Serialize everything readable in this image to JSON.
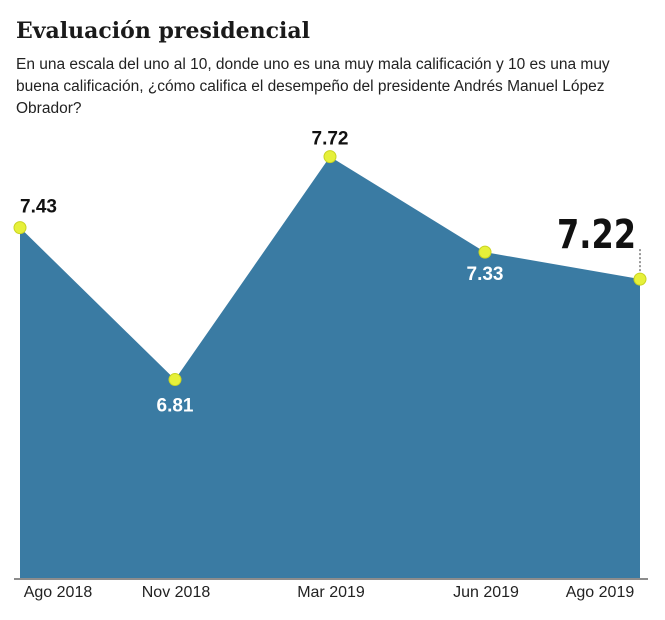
{
  "chart_data": {
    "type": "area",
    "title": "Evaluación presidencial",
    "subtitle": "En una escala del uno al 10, donde uno es una muy mala calificación y 10 es una muy buena calificación, ¿cómo califica el desempeño del presidente Andrés Manuel López Obrador?",
    "categories": [
      "Ago 2018",
      "Nov 2018",
      "Mar 2019",
      "Jun 2019",
      "Ago 2019"
    ],
    "values": [
      7.43,
      6.81,
      7.72,
      7.33,
      7.22
    ],
    "color": "#3a7ba3",
    "marker_color": "#e6f03a",
    "ylim": [
      6,
      8
    ]
  }
}
